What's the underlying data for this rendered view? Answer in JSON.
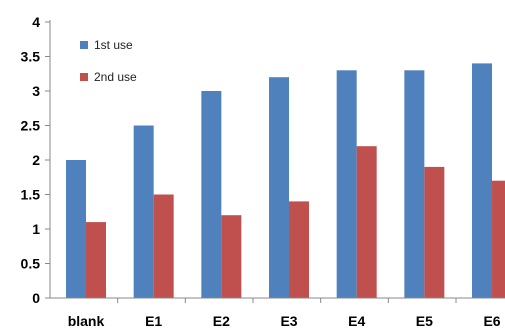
{
  "chart_data": {
    "type": "bar",
    "categories": [
      "blank",
      "E1",
      "E2",
      "E3",
      "E4",
      "E5",
      "E6"
    ],
    "series": [
      {
        "name": "1st use",
        "values": [
          2.0,
          2.5,
          3.0,
          3.2,
          3.3,
          3.3,
          3.4
        ],
        "color": "#4F81BD"
      },
      {
        "name": "2nd use",
        "values": [
          1.1,
          1.5,
          1.2,
          1.4,
          2.2,
          1.9,
          1.7
        ],
        "color": "#C0504D"
      }
    ],
    "y_ticks": [
      "0",
      "0.5",
      "1",
      "1.5",
      "2",
      "2.5",
      "3",
      "3.5",
      "4"
    ],
    "ylim": [
      0,
      4
    ],
    "grid": false,
    "legend_position": "top-left"
  }
}
